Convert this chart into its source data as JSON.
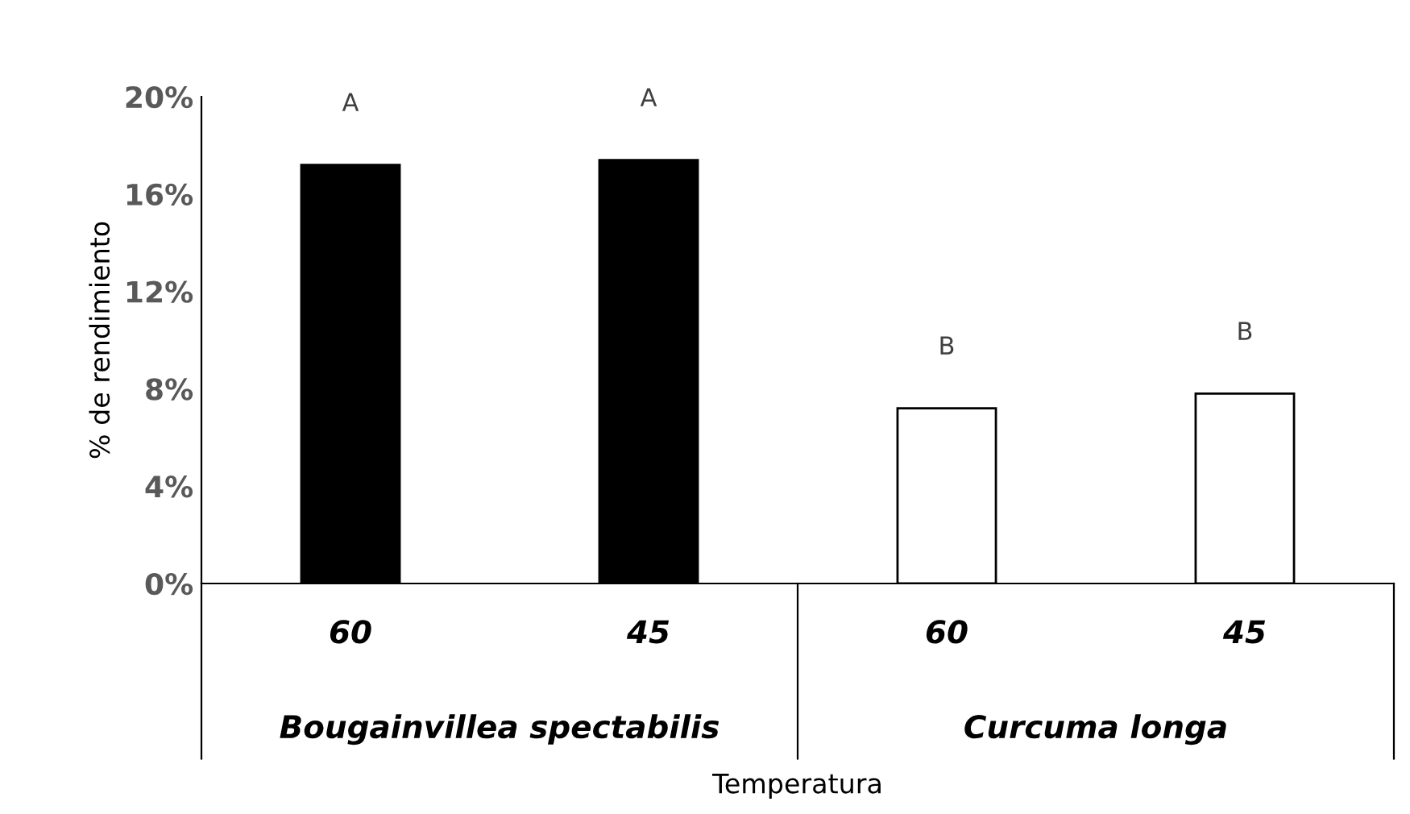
{
  "chart_data": {
    "type": "bar",
    "xlabel": "Temperatura",
    "ylabel": "% de rendimiento",
    "categories": [
      "60",
      "45",
      "60",
      "45"
    ],
    "values": [
      17.2,
      17.4,
      7.2,
      7.8
    ],
    "colors": [
      "#000000",
      "#000000",
      "#ffffff",
      "#ffffff"
    ],
    "ylim": [
      0,
      20
    ],
    "yticks": [
      {
        "value": 0,
        "label": "0%"
      },
      {
        "value": 4,
        "label": "4%"
      },
      {
        "value": 8,
        "label": "8%"
      },
      {
        "value": 12,
        "label": "12%"
      },
      {
        "value": 16,
        "label": "16%"
      },
      {
        "value": 20,
        "label": "20%"
      }
    ],
    "annotations": [
      "A",
      "A",
      "B",
      "B",
      "Bougainvillea spectabilis",
      "Curcuma longa"
    ],
    "grid": false
  }
}
